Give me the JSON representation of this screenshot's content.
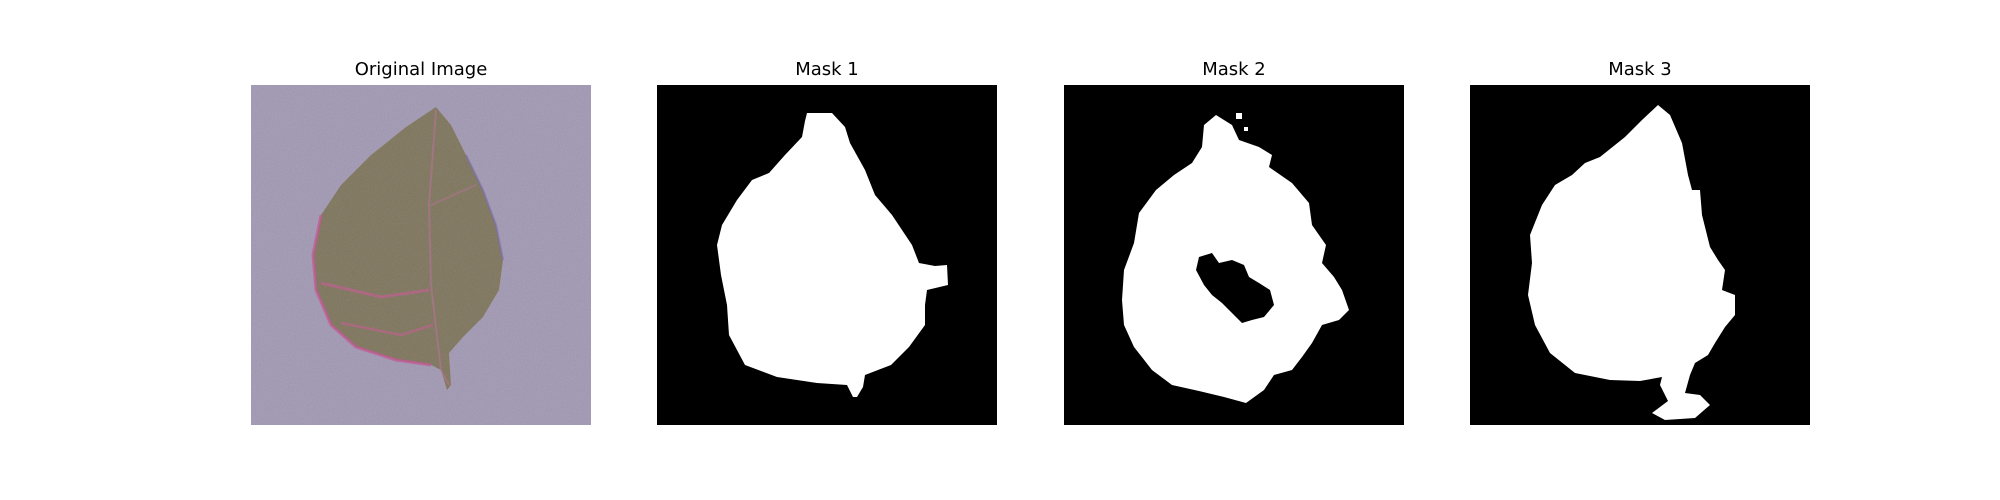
{
  "figure": {
    "panels": [
      {
        "title": "Original Image"
      },
      {
        "title": "Mask 1"
      },
      {
        "title": "Mask 2"
      },
      {
        "title": "Mask 3"
      }
    ]
  },
  "colors": {
    "mask_background": "#000000",
    "mask_foreground": "#ffffff",
    "photo_background": "#a99fba",
    "leaf_fill": "#8f8770",
    "leaf_edge": "#c0508f"
  }
}
